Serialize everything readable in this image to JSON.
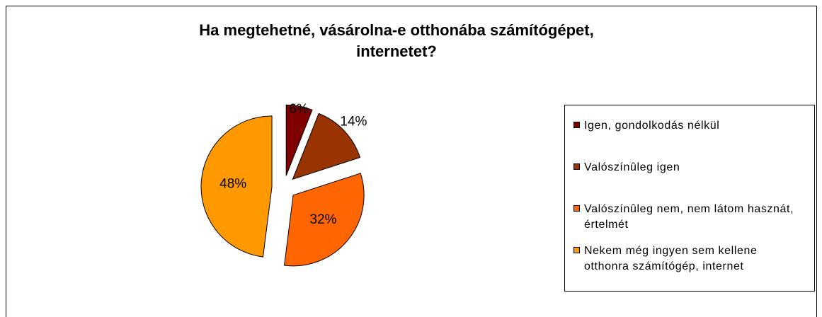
{
  "chart_data": {
    "type": "pie",
    "title": [
      "Ha megtehetné, vásárolna-e otthonába számítógépet,",
      "internetet?"
    ],
    "categories": [
      "Igen, gondolkodás nélkül",
      "Valószínûleg igen",
      "Valószínûleg nem, nem látom hasznát, értelmét",
      "Nekem még ingyen sem kellene otthonra számítógép, internet"
    ],
    "values": [
      6,
      14,
      32,
      48
    ],
    "value_labels": [
      "6%",
      "14%",
      "32%",
      "48%"
    ],
    "colors": [
      "#800000",
      "#993300",
      "#ff6600",
      "#ff9900"
    ],
    "legend": "right"
  }
}
